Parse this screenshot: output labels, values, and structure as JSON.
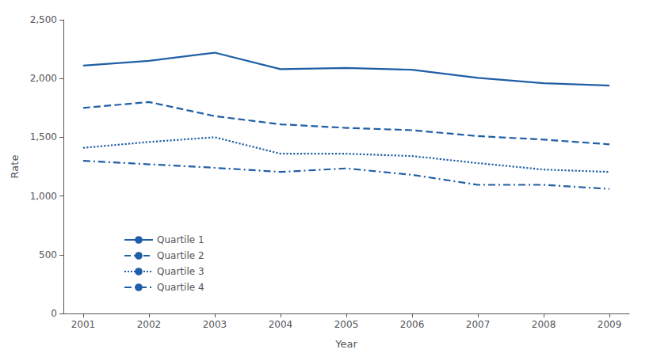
{
  "chart_data": {
    "type": "line",
    "x": [
      2001,
      2002,
      2003,
      2004,
      2005,
      2006,
      2007,
      2008,
      2009
    ],
    "series": [
      {
        "name": "Quartile 1",
        "values": [
          2110,
          2150,
          2220,
          2080,
          2090,
          2075,
          2005,
          1960,
          1940
        ],
        "line_style": "solid"
      },
      {
        "name": "Quartile 2",
        "values": [
          1750,
          1800,
          1680,
          1610,
          1580,
          1560,
          1510,
          1480,
          1440
        ],
        "line_style": "dashed"
      },
      {
        "name": "Quartile 3",
        "values": [
          1410,
          1460,
          1500,
          1360,
          1360,
          1340,
          1280,
          1225,
          1205
        ],
        "line_style": "dotted"
      },
      {
        "name": "Quartile 4",
        "values": [
          1300,
          1270,
          1240,
          1205,
          1235,
          1180,
          1095,
          1095,
          1060
        ],
        "line_style": "dashdot"
      }
    ],
    "color": "#1f5fa6",
    "xlabel": "Year",
    "ylabel": "Rate",
    "xlim": [
      2000.7,
      2009.3
    ],
    "xticks": [
      2001,
      2002,
      2003,
      2004,
      2005,
      2006,
      2007,
      2008,
      2009
    ],
    "ylim": [
      0,
      2500
    ],
    "yticks": [
      0,
      500,
      {
        "value": 1000,
        "label": "1,000"
      },
      {
        "value": 1500,
        "label": "1,500"
      },
      {
        "value": 2000,
        "label": "2,000"
      },
      {
        "value": 2500,
        "label": "2,500"
      }
    ],
    "grid": false,
    "legend": "lower left"
  }
}
